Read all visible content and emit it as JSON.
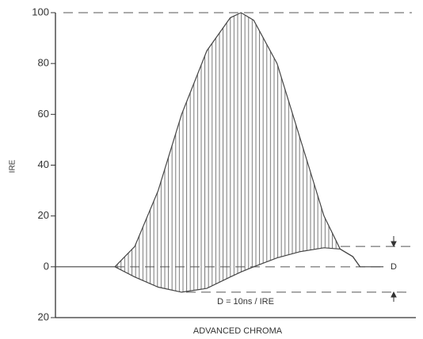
{
  "chart_data": {
    "type": "line",
    "x_label": "ADVANCED CHROMA",
    "y_label": "IRE",
    "x": [
      0,
      16.5,
      22,
      28.5,
      35,
      42,
      48.5,
      51.5,
      55,
      61.5,
      68,
      74.5,
      79,
      82.5,
      84.5,
      91
    ],
    "xlim": [
      0,
      100
    ],
    "series": [
      {
        "color": "#555555",
        "values": [
          null,
          0,
          8,
          30,
          60,
          85,
          98,
          100,
          97,
          80,
          50,
          20,
          7,
          4,
          0,
          null
        ]
      },
      {
        "color": "#444444",
        "values": [
          0,
          0,
          -4,
          -8,
          -10,
          -8.5,
          -4,
          -2,
          0,
          3.5,
          6,
          7.5,
          7,
          4,
          0,
          0
        ]
      }
    ],
    "ylim": [
      -20,
      100
    ],
    "yticks": [
      {
        "value": -20,
        "label": "20"
      },
      0,
      20,
      40,
      60,
      80,
      100
    ],
    "reference_lines": [
      100,
      0,
      8,
      -10
    ],
    "annotations": [
      "D",
      "D = 10ns / IRE"
    ]
  }
}
